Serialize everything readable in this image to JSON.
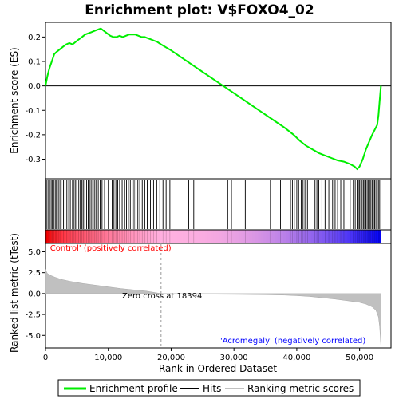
{
  "chart_data": {
    "type": "line",
    "title": "Enrichment plot: V$FOXO4_02",
    "xlabel": "Rank in Ordered Dataset",
    "xlim": [
      0,
      55000
    ],
    "xticks": [
      0,
      10000,
      20000,
      30000,
      40000,
      50000
    ],
    "xtick_labels": [
      "0",
      "10,000",
      "20,000",
      "30,000",
      "40,000",
      "50,000"
    ],
    "panels": [
      {
        "name": "enrichment",
        "ylabel": "Enrichment score (ES)",
        "ylim": [
          -0.38,
          0.26
        ],
        "yticks": [
          0.2,
          0.1,
          0.0,
          -0.1,
          -0.2,
          -0.3
        ],
        "ytick_labels": [
          "0.2",
          "0.1",
          "0.0",
          "-0.1",
          "-0.2",
          "-0.3"
        ],
        "series": [
          {
            "name": "Enrichment profile",
            "color": "#00ee00",
            "x": [
              0,
              300,
              600,
              1000,
              1400,
              1800,
              2300,
              2800,
              3300,
              3800,
              4300,
              4800,
              5300,
              5800,
              6300,
              6800,
              7300,
              7800,
              8300,
              8800,
              9300,
              9800,
              10300,
              10800,
              11300,
              11800,
              12300,
              12800,
              13300,
              13800,
              14300,
              14800,
              15300,
              15800,
              16300,
              16800,
              17300,
              17800,
              18394,
              20000,
              22000,
              24000,
              26000,
              28000,
              30000,
              32000,
              34000,
              36000,
              38000,
              39500,
              40500,
              41500,
              42500,
              43500,
              44500,
              45500,
              46500,
              47500,
              48500,
              49200,
              49600,
              50000,
              50500,
              51000,
              51500,
              52000,
              52400,
              52800,
              53000,
              53200,
              53400
            ],
            "y": [
              0.0,
              0.04,
              0.07,
              0.1,
              0.13,
              0.14,
              0.15,
              0.16,
              0.17,
              0.175,
              0.17,
              0.18,
              0.19,
              0.2,
              0.21,
              0.215,
              0.22,
              0.225,
              0.23,
              0.235,
              0.225,
              0.215,
              0.205,
              0.2,
              0.2,
              0.205,
              0.2,
              0.205,
              0.21,
              0.21,
              0.21,
              0.205,
              0.2,
              0.2,
              0.195,
              0.19,
              0.185,
              0.18,
              0.17,
              0.145,
              0.11,
              0.075,
              0.04,
              0.005,
              -0.03,
              -0.065,
              -0.1,
              -0.135,
              -0.17,
              -0.2,
              -0.225,
              -0.245,
              -0.26,
              -0.275,
              -0.285,
              -0.295,
              -0.305,
              -0.31,
              -0.32,
              -0.33,
              -0.34,
              -0.33,
              -0.3,
              -0.26,
              -0.23,
              -0.2,
              -0.18,
              -0.16,
              -0.12,
              -0.06,
              0.0
            ]
          }
        ]
      },
      {
        "name": "hits",
        "legend": "Hits",
        "hit_ranks": [
          150,
          400,
          650,
          900,
          1100,
          1300,
          1550,
          1750,
          2050,
          2300,
          2500,
          2850,
          3100,
          3400,
          3700,
          3950,
          4300,
          4550,
          4800,
          5000,
          5300,
          5550,
          5800,
          6000,
          6250,
          6550,
          6800,
          7100,
          7350,
          7600,
          7850,
          8100,
          8400,
          8700,
          9000,
          9400,
          10000,
          10600,
          10900,
          11200,
          11500,
          11800,
          12200,
          12600,
          12900,
          13200,
          13500,
          13800,
          14100,
          14400,
          14700,
          15000,
          15400,
          15800,
          16200,
          16700,
          17200,
          17700,
          18200,
          18700,
          19200,
          19800,
          22800,
          23600,
          29000,
          29600,
          31800,
          35800,
          37400,
          39000,
          39300,
          39600,
          40000,
          40300,
          40700,
          41000,
          41300,
          41700,
          42900,
          43200,
          43500,
          44000,
          44500,
          45100,
          45700,
          46100,
          46500,
          47000,
          47500,
          48500,
          49000,
          49300,
          49600,
          49800,
          50000,
          50200,
          50400,
          50600,
          50800,
          51000,
          51200,
          51400,
          51600,
          51800,
          52000,
          52200,
          52400,
          52600,
          52800,
          53000,
          53200
        ]
      },
      {
        "name": "ranked-metric",
        "ylabel": "Ranked list metric (tTest)",
        "ylim": [
          -6.5,
          6.0
        ],
        "yticks": [
          5.0,
          2.5,
          0.0,
          -2.5,
          -5.0
        ],
        "ytick_labels": [
          "5.0",
          "2.5",
          "0.0",
          "-2.5",
          "-5.0"
        ],
        "series": [
          {
            "name": "Ranking metric scores",
            "color": "#c0c0c0",
            "x": [
              0,
              100,
              300,
              700,
              1500,
              2500,
              4000,
              6000,
              8000,
              10000,
              12000,
              14000,
              16000,
              18394,
              22000,
              26000,
              30000,
              34000,
              38000,
              40000,
              42000,
              44000,
              46000,
              48000,
              50000,
              51000,
              52000,
              52600,
              53000,
              53200,
              53400
            ],
            "y": [
              2.9,
              2.7,
              2.4,
              2.2,
              1.95,
              1.7,
              1.45,
              1.2,
              1.0,
              0.8,
              0.6,
              0.45,
              0.3,
              0.0,
              -0.05,
              -0.08,
              -0.1,
              -0.13,
              -0.18,
              -0.25,
              -0.35,
              -0.5,
              -0.65,
              -0.85,
              -1.05,
              -1.25,
              -1.6,
              -2.0,
              -2.8,
              -4.0,
              -6.4
            ]
          }
        ],
        "annotations": [
          {
            "text": "'Control' (positively correlated)",
            "color": "#ff0000"
          },
          {
            "text": "Zero cross at 18394",
            "color": "#000000"
          },
          {
            "text": "'Acromegaly' (negatively correlated)",
            "color": "#0000ff"
          }
        ]
      }
    ],
    "legend": {
      "placement": "bottom",
      "entries": [
        "Enrichment profile",
        "Hits",
        "Ranking metric scores"
      ],
      "colors": [
        "#00ee00",
        "#000000",
        "#c0c0c0"
      ]
    },
    "colors": {
      "positive_band": "#ff0000",
      "neutral_band": "#ffb0e0",
      "negative_band": "#0000ff"
    }
  }
}
